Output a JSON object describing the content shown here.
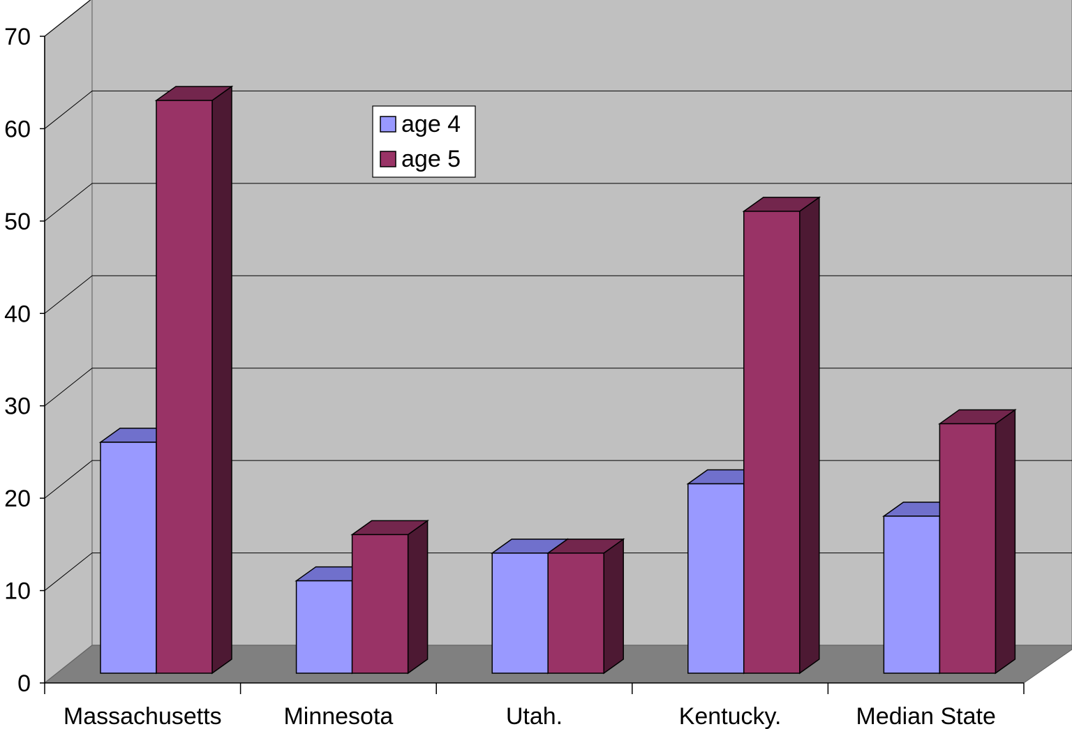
{
  "chart_data": {
    "type": "bar",
    "categories": [
      "Massachusetts",
      "Minnesota",
      "Utah.",
      "Kentucky.",
      "Median State"
    ],
    "series": [
      {
        "name": "age 4",
        "values": [
          25,
          10,
          13,
          20.5,
          17
        ],
        "color": "#9999ff"
      },
      {
        "name": "age 5",
        "values": [
          62,
          15,
          13,
          50,
          27
        ],
        "color": "#993366"
      }
    ],
    "title": "",
    "xlabel": "",
    "ylabel": "",
    "ylim": [
      0,
      70
    ],
    "yticks": [
      0,
      10,
      20,
      30,
      40,
      50,
      60,
      70
    ],
    "grid": true,
    "legend": "top-center",
    "three_d": true,
    "colors": {
      "wall": "#c0c0c0",
      "floor": "#808080",
      "age4_top": "#7070cc",
      "age5_top": "#73264d",
      "side": "#4d1933"
    }
  }
}
